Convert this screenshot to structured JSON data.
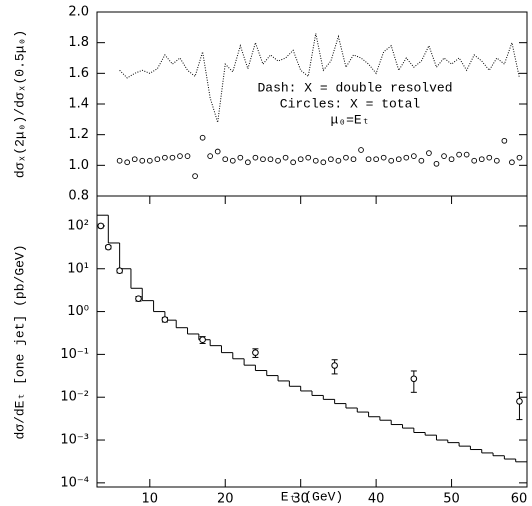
{
  "chart_data": [
    {
      "type": "line",
      "ylabel": "dσₓ(2μ₀)/dσₓ(0.5μ₀)",
      "annotations": [
        "Dash: X = double resolved",
        "Circles: X = total",
        "μ₀=Eₜ"
      ],
      "xlim": [
        3,
        60
      ],
      "ylim": [
        0.8,
        2.0
      ],
      "yticks": [
        0.8,
        {
          "value": 1,
          "label": "1.0"
        },
        1.2,
        1.4,
        1.6,
        1.8,
        {
          "value": 2,
          "label": "2.0"
        }
      ],
      "x": [
        6,
        7,
        8,
        9,
        10,
        11,
        12,
        13,
        14,
        15,
        16,
        17,
        18,
        19,
        20,
        21,
        22,
        23,
        24,
        25,
        26,
        27,
        28,
        29,
        30,
        31,
        32,
        33,
        34,
        35,
        36,
        37,
        38,
        39,
        40,
        41,
        42,
        43,
        44,
        45,
        46,
        47,
        48,
        49,
        50,
        51,
        52,
        53,
        54,
        55,
        56,
        57,
        58,
        59
      ],
      "series": [
        {
          "style": "dotted",
          "color": "#000000",
          "values": [
            1.62,
            1.57,
            1.6,
            1.62,
            1.6,
            1.63,
            1.72,
            1.66,
            1.7,
            1.62,
            1.58,
            1.74,
            1.44,
            1.28,
            1.66,
            1.61,
            1.78,
            1.63,
            1.8,
            1.66,
            1.72,
            1.68,
            1.7,
            1.75,
            1.62,
            1.58,
            1.86,
            1.62,
            1.68,
            1.84,
            1.64,
            1.72,
            1.7,
            1.66,
            1.6,
            1.74,
            1.78,
            1.62,
            1.7,
            1.64,
            1.68,
            1.78,
            1.64,
            1.7,
            1.66,
            1.7,
            1.62,
            1.72,
            1.68,
            1.62,
            1.7,
            1.66,
            1.8,
            1.57
          ]
        },
        {
          "style": "circles",
          "color": "#000000",
          "values": [
            1.03,
            1.02,
            1.04,
            1.03,
            1.03,
            1.04,
            1.05,
            1.05,
            1.06,
            1.06,
            0.93,
            1.18,
            1.06,
            1.09,
            1.04,
            1.03,
            1.05,
            1.02,
            1.05,
            1.04,
            1.04,
            1.03,
            1.05,
            1.02,
            1.04,
            1.05,
            1.03,
            1.02,
            1.04,
            1.03,
            1.05,
            1.04,
            1.1,
            1.04,
            1.04,
            1.05,
            1.03,
            1.04,
            1.05,
            1.06,
            1.03,
            1.08,
            1.01,
            1.06,
            1.04,
            1.07,
            1.07,
            1.03,
            1.04,
            1.05,
            1.03,
            1.16,
            1.02,
            1.05
          ]
        }
      ]
    },
    {
      "type": "histogram",
      "xlabel": "Eₜ (GeV)",
      "ylabel": "dσ/dEₜ [one jet] (pb/GeV)",
      "log_y": true,
      "color": "#000000",
      "xlim": [
        3,
        60
      ],
      "xticks": [
        10,
        20,
        30,
        40,
        50,
        60
      ],
      "ylim": [
        8e-05,
        500
      ],
      "yticks": [
        {
          "value": 0.0001,
          "label": "10⁻⁴"
        },
        {
          "value": 0.001,
          "label": "10⁻³"
        },
        {
          "value": 0.01,
          "label": "10⁻²"
        },
        {
          "value": 0.1,
          "label": "10⁻¹"
        },
        {
          "value": 1,
          "label": "10⁰"
        },
        {
          "value": 10,
          "label": "10¹"
        },
        {
          "value": 100,
          "label": "10²"
        }
      ],
      "bins": [
        3,
        4.5,
        6,
        7.5,
        9,
        10.5,
        12,
        13.5,
        15,
        16.5,
        18,
        19.5,
        21,
        22.5,
        24,
        25.5,
        27,
        28.5,
        30,
        31.5,
        33,
        34.5,
        36,
        37.5,
        39,
        40.5,
        42,
        43.5,
        45,
        46.5,
        48,
        49.5,
        51,
        52.5,
        54,
        55.5,
        57,
        58.5,
        60
      ],
      "values": [
        178,
        40,
        10,
        3.5,
        1.8,
        1.0,
        0.63,
        0.42,
        0.3,
        0.22,
        0.16,
        0.11,
        0.079,
        0.056,
        0.042,
        0.032,
        0.024,
        0.018,
        0.014,
        0.011,
        0.0089,
        0.0071,
        0.0056,
        0.0045,
        0.0035,
        0.0029,
        0.0023,
        0.0019,
        0.0015,
        0.0013,
        0.001,
        0.00087,
        0.00072,
        0.0006,
        0.0005,
        0.00043,
        0.00036,
        0.00031
      ],
      "points": {
        "x": [
          3.5,
          4.5,
          6,
          8.5,
          12,
          17,
          24,
          34.5,
          45,
          59
        ],
        "values": [
          100,
          32,
          9,
          2,
          0.65,
          0.22,
          0.11,
          0.055,
          0.027,
          0.008
        ],
        "errors": [
          10,
          3,
          1,
          0.25,
          0.08,
          0.04,
          0.025,
          0.02,
          0.014,
          0.005
        ]
      }
    }
  ]
}
